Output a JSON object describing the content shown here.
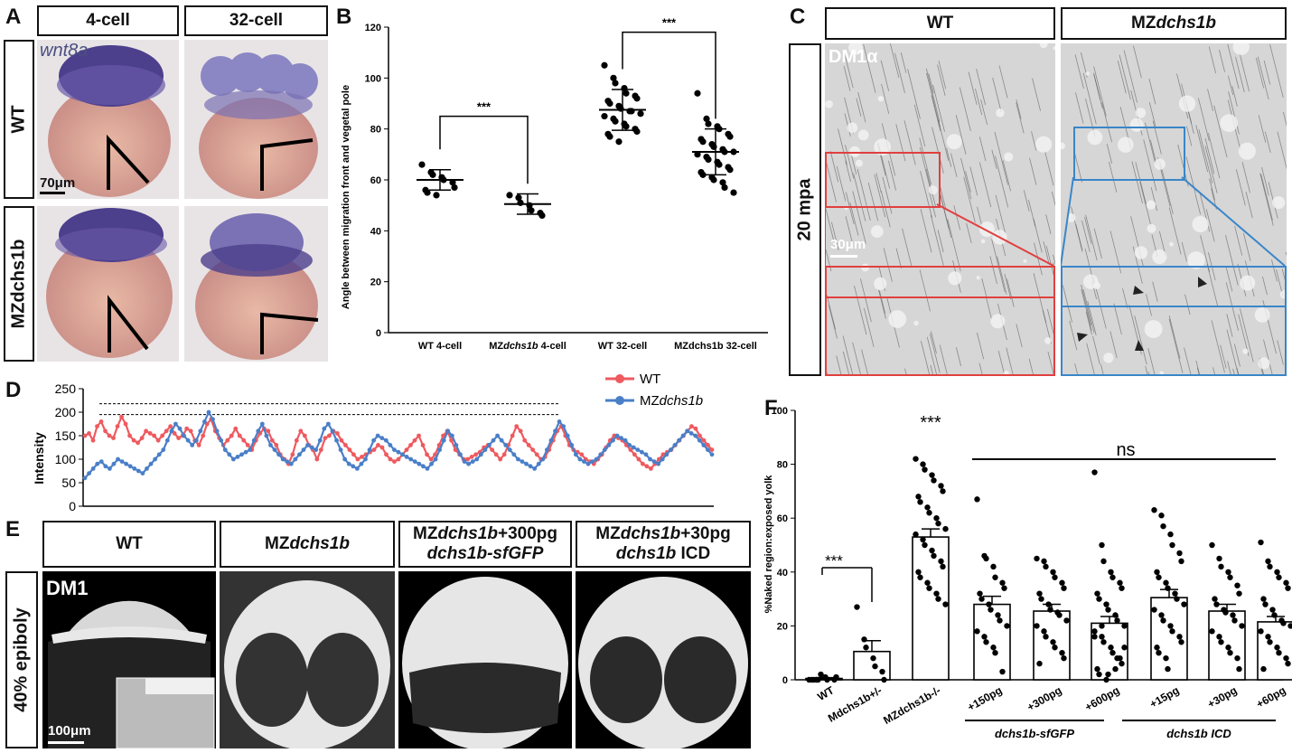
{
  "panelA": {
    "label": "A",
    "col_headers": [
      "4-cell",
      "32-cell"
    ],
    "row_headers": [
      "WT",
      "MZdchs1b"
    ],
    "gene": "wnt8a",
    "scalebar": "70μm"
  },
  "panelB": {
    "label": "B",
    "ylabel": "Angle between migration front and vegetal pole",
    "yticks": [
      "0",
      "20",
      "40",
      "60",
      "80",
      "100",
      "120"
    ],
    "sig": [
      "***",
      "***"
    ]
  },
  "panelC": {
    "label": "C",
    "col_headers": [
      "WT",
      "MZdchs1b"
    ],
    "row_header": "20 mpa",
    "stain": "DM1α",
    "scalebar": "30μm"
  },
  "panelD": {
    "label": "D",
    "ylabel": "Intensity",
    "yticks": [
      "0",
      "50",
      "100",
      "150",
      "200",
      "250"
    ],
    "legend": [
      {
        "name": "WT",
        "color": "#ee5a5f"
      },
      {
        "name": "MZdchs1b",
        "color": "#4a7fc8"
      }
    ]
  },
  "panelE": {
    "label": "E",
    "col_headers": [
      "WT",
      "MZdchs1b",
      "MZdchs1b+300pg dchs1b-sfGFP",
      "MZdchs1b+30pg dchs1b ICD"
    ],
    "row_header": "40% epiboly",
    "stain": "DM1",
    "scalebar": "100μm"
  },
  "panelF": {
    "label": "F",
    "ylabel": "%Naked region:exposed yolk",
    "yticks": [
      "0",
      "20",
      "40",
      "60",
      "80",
      "100"
    ],
    "sig_top": "***",
    "sig_pair": "***",
    "ns": "ns",
    "group_labels": [
      "dchs1b-sfGFP",
      "dchs1b ICD"
    ]
  },
  "chart_data": [
    {
      "type": "scatter",
      "panel": "B",
      "ylabel": "Angle between migration front and vegetal pole",
      "ylim": [
        0,
        120
      ],
      "categories": [
        "WT 4-cell",
        "MZdchs1b 4-cell",
        "WT 32-cell",
        "MZdchs1b 32-cell"
      ],
      "means": [
        60,
        50.5,
        87.5,
        71
      ],
      "sd": [
        4,
        4,
        8,
        9
      ],
      "values": [
        [
          66,
          63,
          62,
          61,
          60,
          59,
          57,
          56,
          55,
          54
        ],
        [
          54,
          53,
          51,
          50,
          48,
          47,
          46
        ],
        [
          105,
          100,
          98,
          96,
          94,
          93,
          92,
          91,
          90,
          89,
          88,
          87,
          87,
          86,
          85,
          84,
          83,
          82,
          81,
          80,
          79,
          78,
          77,
          75
        ],
        [
          94,
          84,
          82,
          81,
          80,
          78,
          77,
          76,
          75,
          74,
          73,
          72,
          71,
          71,
          70,
          69,
          68,
          67,
          66,
          65,
          64,
          63,
          62,
          61,
          60,
          59,
          57,
          55
        ]
      ]
    },
    {
      "type": "line",
      "panel": "D",
      "ylabel": "Intensity",
      "ylim": [
        0,
        250
      ],
      "series": [
        {
          "name": "WT",
          "values": [
            150,
            155,
            140,
            170,
            180,
            160,
            150,
            145,
            170,
            190,
            175,
            150,
            140,
            135,
            145,
            160,
            155,
            150,
            140,
            150,
            160,
            170,
            155,
            145,
            150,
            165,
            160,
            140,
            130,
            150,
            175,
            185,
            160,
            145,
            130,
            140,
            150,
            165,
            150,
            140,
            130,
            120,
            140,
            155,
            165,
            160,
            140,
            130,
            110,
            100,
            90,
            110,
            140,
            160,
            150,
            130,
            120,
            100,
            120,
            145,
            150,
            160,
            155,
            140,
            130,
            120,
            110,
            100,
            105,
            110,
            115,
            120,
            130,
            125,
            110,
            100,
            95,
            100,
            110,
            120,
            130,
            140,
            150,
            130,
            110,
            100,
            110,
            130,
            150,
            160,
            140,
            120,
            110,
            100,
            100,
            105,
            110,
            115,
            125,
            130,
            120,
            110,
            100,
            110,
            130,
            150,
            170,
            160,
            140,
            130,
            120,
            110,
            100,
            105,
            120,
            140,
            160,
            170,
            150,
            130,
            120,
            115,
            110,
            100,
            95,
            90,
            100,
            110,
            125,
            140,
            150,
            145,
            140,
            130,
            120,
            110,
            100,
            90,
            85,
            80,
            90,
            100,
            110,
            115,
            120,
            130,
            140,
            150,
            160,
            170,
            165,
            150,
            140,
            130,
            120
          ]
        },
        {
          "name": "MZdchs1b",
          "values": [
            60,
            70,
            80,
            90,
            95,
            85,
            80,
            90,
            100,
            95,
            90,
            85,
            80,
            75,
            70,
            80,
            90,
            100,
            110,
            120,
            140,
            160,
            175,
            165,
            150,
            140,
            130,
            140,
            160,
            180,
            200,
            185,
            160,
            140,
            120,
            110,
            100,
            105,
            110,
            115,
            120,
            140,
            160,
            175,
            150,
            130,
            120,
            110,
            100,
            95,
            90,
            100,
            110,
            120,
            130,
            125,
            120,
            140,
            165,
            175,
            160,
            140,
            120,
            100,
            90,
            85,
            80,
            90,
            100,
            120,
            140,
            150,
            145,
            140,
            130,
            120,
            115,
            110,
            105,
            100,
            95,
            90,
            85,
            80,
            90,
            100,
            120,
            140,
            160,
            150,
            130,
            110,
            95,
            90,
            95,
            100,
            110,
            120,
            130,
            140,
            150,
            140,
            130,
            120,
            110,
            100,
            95,
            90,
            85,
            80,
            90,
            100,
            120,
            140,
            160,
            180,
            170,
            150,
            130,
            110,
            100,
            95,
            90,
            95,
            100,
            110,
            120,
            130,
            140,
            150,
            145,
            140,
            130,
            125,
            120,
            115,
            110,
            100,
            95,
            90,
            100,
            110,
            120,
            130,
            140,
            150,
            160,
            155,
            150,
            140,
            130,
            120,
            110
          ]
        }
      ]
    },
    {
      "type": "bar",
      "panel": "F",
      "ylabel": "%Naked region:exposed yolk",
      "ylim": [
        0,
        100
      ],
      "categories": [
        "WT",
        "Mdchs1b+/-",
        "MZdchs1b-/-",
        "+150pg",
        "+300pg",
        "+600pg",
        "+15pg",
        "+30pg",
        "+60pg"
      ],
      "values": [
        0.5,
        10.5,
        53,
        28,
        25.5,
        21,
        30.5,
        25.5,
        21.5
      ],
      "sem": [
        0.3,
        4,
        3,
        3,
        2.5,
        2.5,
        3,
        2.5,
        2
      ],
      "points": [
        [
          0,
          0,
          0,
          1,
          0,
          0,
          1,
          0,
          0,
          2
        ],
        [
          27,
          15,
          12,
          8,
          5,
          3,
          0
        ],
        [
          82,
          80,
          78,
          76,
          74,
          72,
          70,
          68,
          66,
          64,
          62,
          60,
          58,
          56,
          54,
          52,
          50,
          48,
          46,
          44,
          42,
          40,
          38,
          36,
          34,
          32,
          30,
          28
        ],
        [
          67,
          46,
          45,
          42,
          38,
          36,
          34,
          32,
          30,
          28,
          26,
          24,
          22,
          20,
          18,
          16,
          14,
          12,
          10,
          3
        ],
        [
          45,
          44,
          42,
          40,
          38,
          36,
          34,
          32,
          30,
          28,
          26,
          25,
          24,
          22,
          20,
          18,
          16,
          14,
          12,
          10,
          8,
          6
        ],
        [
          77,
          50,
          44,
          40,
          38,
          36,
          34,
          32,
          30,
          28,
          26,
          24,
          22,
          20,
          18,
          16,
          14,
          12,
          10,
          8,
          6,
          4,
          2,
          0,
          2,
          4,
          8,
          12,
          16,
          20
        ],
        [
          63,
          61,
          57,
          54,
          50,
          47,
          44,
          40,
          38,
          36,
          34,
          32,
          30,
          28,
          26,
          24,
          22,
          20,
          18,
          16,
          14,
          12,
          10,
          8,
          4
        ],
        [
          50,
          45,
          42,
          40,
          38,
          35,
          32,
          30,
          28,
          26,
          25,
          24,
          22,
          20,
          18,
          16,
          14,
          12,
          10,
          8,
          4
        ],
        [
          51,
          44,
          42,
          40,
          38,
          36,
          34,
          30,
          28,
          26,
          24,
          22,
          21,
          20,
          18,
          16,
          14,
          12,
          10,
          8,
          6,
          4
        ]
      ]
    }
  ]
}
